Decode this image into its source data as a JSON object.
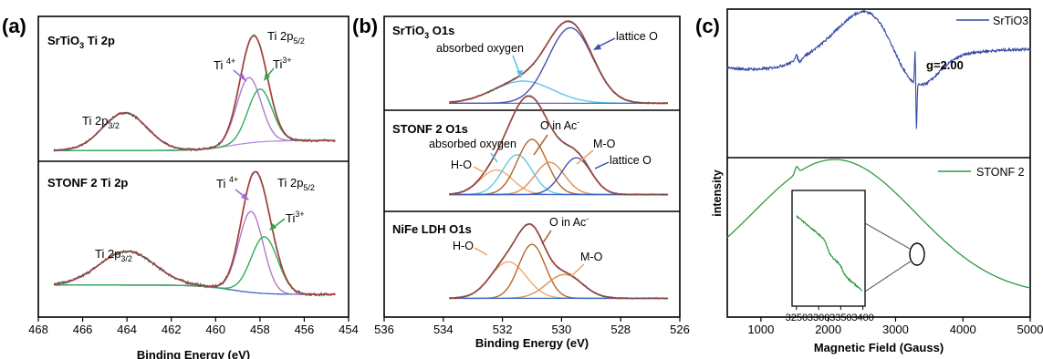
{
  "colors": {
    "raw": "#555555",
    "fit": "#e8413a",
    "ti4": "#b07ac9",
    "ti3": "#2fae5a",
    "bg_blue": "#3a66c8",
    "bg_purple": "#b98de0",
    "abs_oxy": "#5fc7e6",
    "lattice": "#4a4fa8",
    "ho": "#f2a86b",
    "oac": "#b5652a",
    "mo": "#d99155",
    "epr_srtio3": "#3549a6",
    "epr_stonf2": "#2e9a3c",
    "arrow_purple": "#a06ad6",
    "arrow_green": "#2aa84a",
    "arrow_cyan": "#4fc3ea",
    "arrow_blue": "#3a4cb0",
    "arrow_brown": "#a85c24",
    "arrow_orange": "#f0a060"
  },
  "panels": {
    "a": {
      "letter": "(a)",
      "top_title_main": "SrTiO",
      "top_title_sub": "3",
      "top_title_rest": " Ti 2p",
      "bottom_title": "STONF 2 Ti 2p",
      "xlabel": "Binding Energy (eV)",
      "ticks": [
        "468",
        "466",
        "464",
        "462",
        "460",
        "458",
        "456",
        "454"
      ]
    },
    "b": {
      "letter": "(b)",
      "title1_main": "SrTiO",
      "title1_sub": "3",
      "title1_rest": " O1s",
      "title2": "STONF 2 O1s",
      "title3": "NiFe LDH O1s",
      "xlabel": "Binding Energy (eV)",
      "ticks": [
        "536",
        "534",
        "532",
        "530",
        "528",
        "526"
      ]
    },
    "c": {
      "letter": "(c)",
      "legend1": "SrTiO3",
      "legend2": "STONF 2",
      "ylabel": "intensity",
      "xlabel": "Magnetic Field (Gauss)",
      "g_label": "g=2.00",
      "ticks": [
        "1000",
        "2000",
        "3000",
        "4000",
        "5000"
      ],
      "inset_ticks": [
        "3250",
        "3300",
        "3350",
        "3400"
      ]
    }
  },
  "labels": {
    "ti2p32": "Ti 2p",
    "ti2p32_sub": "3/2",
    "ti2p52": "Ti 2p",
    "ti2p52_sub": "5/2",
    "ti4": "Ti ",
    "ti4_sup": "4+",
    "ti3": "Ti",
    "ti3_sup": "3+",
    "absorbed_oxygen": "absorbed oxygen",
    "lattice_o": "lattice O",
    "ho": "H-O",
    "o_in_ac": "O in Ac",
    "o_in_ac_sup": "-",
    "mo": "M-O"
  },
  "chart_data": [
    {
      "type": "line",
      "title": "SrTiO3 Ti 2p",
      "xlabel": "Binding Energy (eV)",
      "xlim": [
        468,
        454
      ],
      "series": [
        {
          "name": "Ti 2p3/2",
          "peak_x": 464.1
        },
        {
          "name": "Ti 2p5/2",
          "peak_x": 458.3
        },
        {
          "name": "Ti 4+",
          "peak_x": 458.5
        },
        {
          "name": "Ti3+",
          "peak_x": 458.0
        }
      ]
    },
    {
      "type": "line",
      "title": "STONF 2 Ti 2p",
      "xlabel": "Binding Energy (eV)",
      "xlim": [
        468,
        454
      ],
      "series": [
        {
          "name": "Ti 2p3/2",
          "peak_x": 464.0
        },
        {
          "name": "Ti 2p5/2",
          "peak_x": 458.2
        },
        {
          "name": "Ti 4+",
          "peak_x": 458.4
        },
        {
          "name": "Ti3+",
          "peak_x": 457.8
        }
      ]
    },
    {
      "type": "line",
      "title": "SrTiO3 O1s",
      "xlabel": "Binding Energy (eV)",
      "xlim": [
        536,
        526
      ],
      "series": [
        {
          "name": "absorbed oxygen",
          "peak_x": 531.3
        },
        {
          "name": "lattice O",
          "peak_x": 529.7
        }
      ]
    },
    {
      "type": "line",
      "title": "STONF 2 O1s",
      "xlabel": "Binding Energy (eV)",
      "xlim": [
        536,
        526
      ],
      "series": [
        {
          "name": "H-O",
          "peak_x": 532.2
        },
        {
          "name": "absorbed oxygen",
          "peak_x": 531.5
        },
        {
          "name": "O in Ac-",
          "peak_x": 531.0
        },
        {
          "name": "M-O",
          "peak_x": 530.4
        },
        {
          "name": "lattice O",
          "peak_x": 529.5
        }
      ]
    },
    {
      "type": "line",
      "title": "NiFe LDH O1s",
      "xlabel": "Binding Energy (eV)",
      "xlim": [
        536,
        526
      ],
      "series": [
        {
          "name": "H-O",
          "peak_x": 531.8
        },
        {
          "name": "O in Ac-",
          "peak_x": 531.0
        },
        {
          "name": "M-O",
          "peak_x": 529.9
        }
      ]
    },
    {
      "type": "line",
      "title": "",
      "xlabel": "Magnetic Field (Gauss)",
      "ylabel": "intensity",
      "xlim": [
        500,
        5000
      ],
      "series": [
        {
          "name": "SrTiO3",
          "signal_x": 3300
        },
        {
          "name": "STONF 2",
          "broad_max_x": 2100
        }
      ]
    }
  ]
}
